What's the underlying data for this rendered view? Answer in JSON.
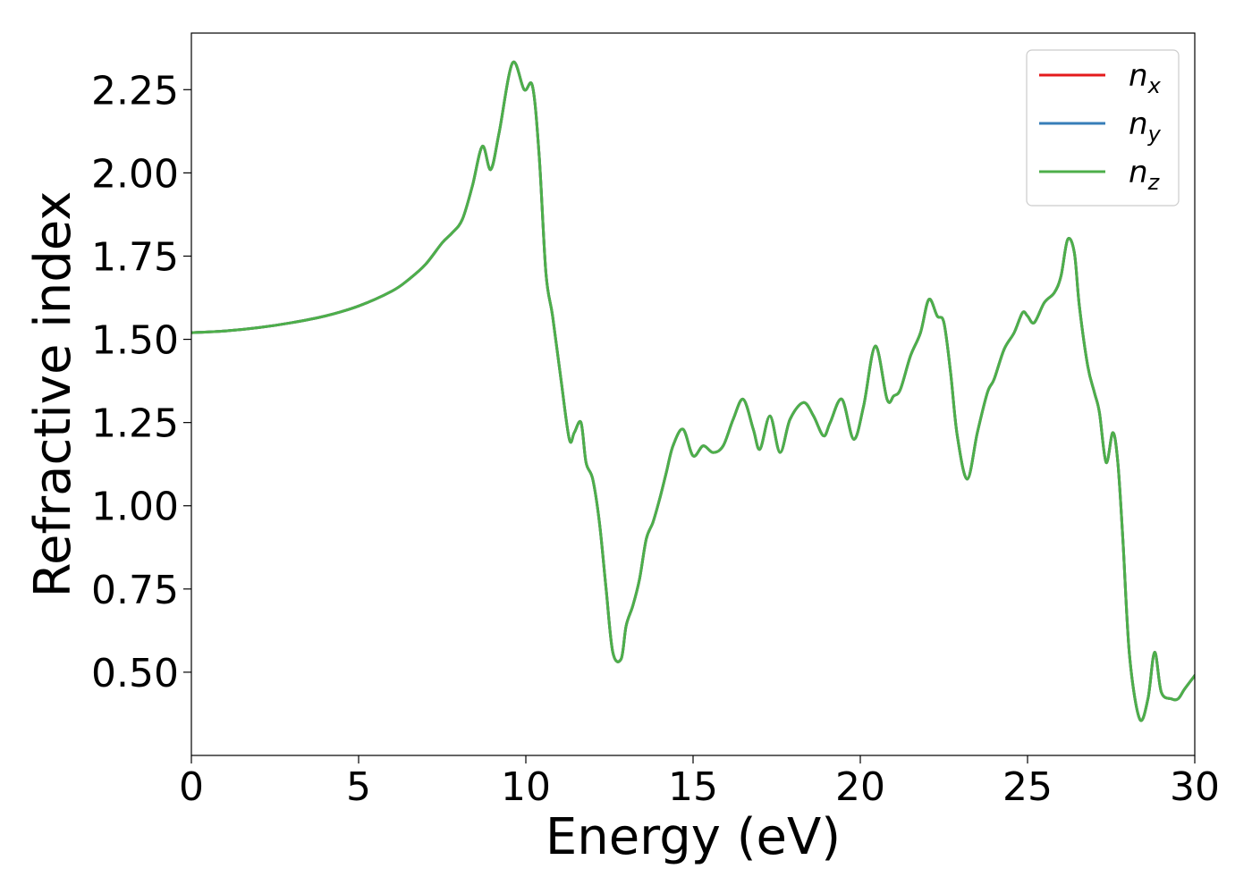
{
  "chart_data": {
    "type": "line",
    "xlabel": "Energy (eV)",
    "ylabel": "Refractive index",
    "xlim": [
      0,
      30
    ],
    "ylim": [
      0.25,
      2.42
    ],
    "xticks": [
      0,
      5,
      10,
      15,
      20,
      25,
      30
    ],
    "xtick_labels": [
      "0",
      "5",
      "10",
      "15",
      "20",
      "25",
      "30"
    ],
    "yticks": [
      0.5,
      0.75,
      1.0,
      1.25,
      1.5,
      1.75,
      2.0,
      2.25
    ],
    "ytick_labels": [
      "0.50",
      "0.75",
      "1.00",
      "1.25",
      "1.50",
      "1.75",
      "2.00",
      "2.25"
    ],
    "grid": false,
    "legend_position": "top-right",
    "series": [
      {
        "name": "n_x",
        "label_main": "n",
        "label_sub": "x",
        "color": "#e41a1c",
        "x": [
          0,
          1,
          2,
          3,
          4,
          5,
          6,
          6.5,
          7,
          7.5,
          7.8,
          8.1,
          8.4,
          8.7,
          8.95,
          9.2,
          9.6,
          9.95,
          10.2,
          10.4,
          10.6,
          10.8,
          11.05,
          11.3,
          11.45,
          11.65,
          11.8,
          12.0,
          12.2,
          12.4,
          12.6,
          12.85,
          13.0,
          13.2,
          13.4,
          13.6,
          13.8,
          14.0,
          14.2,
          14.4,
          14.7,
          15.0,
          15.3,
          15.6,
          15.9,
          16.2,
          16.5,
          16.8,
          17.0,
          17.3,
          17.6,
          17.9,
          18.3,
          18.6,
          18.9,
          19.1,
          19.45,
          19.8,
          20.1,
          20.45,
          20.8,
          21.0,
          21.2,
          21.5,
          21.8,
          22.05,
          22.3,
          22.5,
          22.7,
          22.9,
          23.2,
          23.5,
          23.8,
          24.0,
          24.3,
          24.6,
          24.85,
          25.0,
          25.2,
          25.5,
          25.8,
          26.0,
          26.2,
          26.4,
          26.55,
          26.8,
          27.0,
          27.15,
          27.35,
          27.55,
          27.7,
          27.85,
          28.05,
          28.35,
          28.6,
          28.8,
          29.0,
          29.3,
          29.5,
          29.7,
          30.0
        ],
        "y": [
          1.52,
          1.525,
          1.535,
          1.55,
          1.57,
          1.6,
          1.645,
          1.68,
          1.725,
          1.79,
          1.82,
          1.86,
          1.96,
          2.08,
          2.01,
          2.12,
          2.33,
          2.25,
          2.26,
          2.05,
          1.7,
          1.57,
          1.38,
          1.2,
          1.22,
          1.25,
          1.13,
          1.08,
          0.95,
          0.75,
          0.56,
          0.54,
          0.64,
          0.7,
          0.78,
          0.9,
          0.95,
          1.02,
          1.1,
          1.18,
          1.23,
          1.15,
          1.18,
          1.16,
          1.18,
          1.26,
          1.32,
          1.23,
          1.17,
          1.27,
          1.16,
          1.26,
          1.31,
          1.27,
          1.21,
          1.25,
          1.32,
          1.2,
          1.3,
          1.48,
          1.32,
          1.33,
          1.35,
          1.45,
          1.52,
          1.62,
          1.57,
          1.55,
          1.4,
          1.21,
          1.08,
          1.22,
          1.34,
          1.38,
          1.47,
          1.52,
          1.58,
          1.57,
          1.55,
          1.61,
          1.64,
          1.69,
          1.8,
          1.76,
          1.6,
          1.42,
          1.34,
          1.28,
          1.13,
          1.22,
          1.13,
          0.9,
          0.55,
          0.36,
          0.42,
          0.56,
          0.44,
          0.42,
          0.42,
          0.45,
          0.49
        ]
      },
      {
        "name": "n_y",
        "label_main": "n",
        "label_sub": "y",
        "color": "#377eb8",
        "x": [
          0,
          1,
          2,
          3,
          4,
          5,
          6,
          6.5,
          7,
          7.5,
          7.8,
          8.1,
          8.4,
          8.7,
          8.95,
          9.2,
          9.6,
          9.95,
          10.2,
          10.4,
          10.6,
          10.8,
          11.05,
          11.3,
          11.45,
          11.65,
          11.8,
          12.0,
          12.2,
          12.4,
          12.6,
          12.85,
          13.0,
          13.2,
          13.4,
          13.6,
          13.8,
          14.0,
          14.2,
          14.4,
          14.7,
          15.0,
          15.3,
          15.6,
          15.9,
          16.2,
          16.5,
          16.8,
          17.0,
          17.3,
          17.6,
          17.9,
          18.3,
          18.6,
          18.9,
          19.1,
          19.45,
          19.8,
          20.1,
          20.45,
          20.8,
          21.0,
          21.2,
          21.5,
          21.8,
          22.05,
          22.3,
          22.5,
          22.7,
          22.9,
          23.2,
          23.5,
          23.8,
          24.0,
          24.3,
          24.6,
          24.85,
          25.0,
          25.2,
          25.5,
          25.8,
          26.0,
          26.2,
          26.4,
          26.55,
          26.8,
          27.0,
          27.15,
          27.35,
          27.55,
          27.7,
          27.85,
          28.05,
          28.35,
          28.6,
          28.8,
          29.0,
          29.3,
          29.5,
          29.7,
          30.0
        ],
        "y": [
          1.52,
          1.525,
          1.535,
          1.55,
          1.57,
          1.6,
          1.645,
          1.68,
          1.725,
          1.79,
          1.82,
          1.86,
          1.96,
          2.08,
          2.01,
          2.12,
          2.33,
          2.25,
          2.26,
          2.05,
          1.7,
          1.57,
          1.38,
          1.2,
          1.22,
          1.25,
          1.13,
          1.08,
          0.95,
          0.75,
          0.56,
          0.54,
          0.64,
          0.7,
          0.78,
          0.9,
          0.95,
          1.02,
          1.1,
          1.18,
          1.23,
          1.15,
          1.18,
          1.16,
          1.18,
          1.26,
          1.32,
          1.23,
          1.17,
          1.27,
          1.16,
          1.26,
          1.31,
          1.27,
          1.21,
          1.25,
          1.32,
          1.2,
          1.3,
          1.48,
          1.32,
          1.33,
          1.35,
          1.45,
          1.52,
          1.62,
          1.57,
          1.55,
          1.4,
          1.21,
          1.08,
          1.22,
          1.34,
          1.38,
          1.47,
          1.52,
          1.58,
          1.57,
          1.55,
          1.61,
          1.64,
          1.69,
          1.8,
          1.76,
          1.6,
          1.42,
          1.34,
          1.28,
          1.13,
          1.22,
          1.13,
          0.9,
          0.55,
          0.36,
          0.42,
          0.56,
          0.44,
          0.42,
          0.42,
          0.45,
          0.49
        ]
      },
      {
        "name": "n_z",
        "label_main": "n",
        "label_sub": "z",
        "color": "#4daf4a",
        "x": [
          0,
          1,
          2,
          3,
          4,
          5,
          6,
          6.5,
          7,
          7.5,
          7.8,
          8.1,
          8.4,
          8.7,
          8.95,
          9.2,
          9.6,
          9.95,
          10.2,
          10.4,
          10.6,
          10.8,
          11.05,
          11.3,
          11.45,
          11.65,
          11.8,
          12.0,
          12.2,
          12.4,
          12.6,
          12.85,
          13.0,
          13.2,
          13.4,
          13.6,
          13.8,
          14.0,
          14.2,
          14.4,
          14.7,
          15.0,
          15.3,
          15.6,
          15.9,
          16.2,
          16.5,
          16.8,
          17.0,
          17.3,
          17.6,
          17.9,
          18.3,
          18.6,
          18.9,
          19.1,
          19.45,
          19.8,
          20.1,
          20.45,
          20.8,
          21.0,
          21.2,
          21.5,
          21.8,
          22.05,
          22.3,
          22.5,
          22.7,
          22.9,
          23.2,
          23.5,
          23.8,
          24.0,
          24.3,
          24.6,
          24.85,
          25.0,
          25.2,
          25.5,
          25.8,
          26.0,
          26.2,
          26.4,
          26.55,
          26.8,
          27.0,
          27.15,
          27.35,
          27.55,
          27.7,
          27.85,
          28.05,
          28.35,
          28.6,
          28.8,
          29.0,
          29.3,
          29.5,
          29.7,
          30.0
        ],
        "y": [
          1.52,
          1.525,
          1.535,
          1.55,
          1.57,
          1.6,
          1.645,
          1.68,
          1.725,
          1.79,
          1.82,
          1.86,
          1.96,
          2.08,
          2.01,
          2.12,
          2.33,
          2.25,
          2.26,
          2.05,
          1.7,
          1.57,
          1.38,
          1.2,
          1.22,
          1.25,
          1.13,
          1.08,
          0.95,
          0.75,
          0.56,
          0.54,
          0.64,
          0.7,
          0.78,
          0.9,
          0.95,
          1.02,
          1.1,
          1.18,
          1.23,
          1.15,
          1.18,
          1.16,
          1.18,
          1.26,
          1.32,
          1.23,
          1.17,
          1.27,
          1.16,
          1.26,
          1.31,
          1.27,
          1.21,
          1.25,
          1.32,
          1.2,
          1.3,
          1.48,
          1.32,
          1.33,
          1.35,
          1.45,
          1.52,
          1.62,
          1.57,
          1.55,
          1.4,
          1.21,
          1.08,
          1.22,
          1.34,
          1.38,
          1.47,
          1.52,
          1.58,
          1.57,
          1.55,
          1.61,
          1.64,
          1.69,
          1.8,
          1.76,
          1.6,
          1.42,
          1.34,
          1.28,
          1.13,
          1.22,
          1.13,
          0.9,
          0.55,
          0.36,
          0.42,
          0.56,
          0.44,
          0.42,
          0.42,
          0.45,
          0.49
        ]
      }
    ]
  }
}
